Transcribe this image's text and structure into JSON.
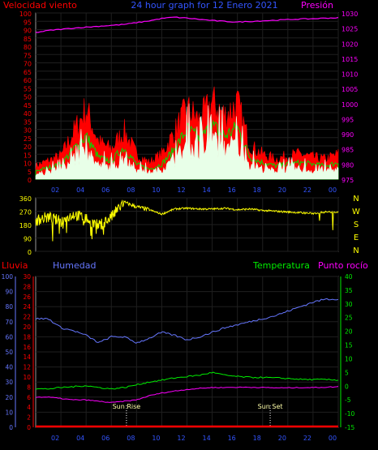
{
  "chart_data": [
    {
      "type": "area",
      "title": "24 hour graph for 12 Enero 2021",
      "left_axis_label": "Velocidad viento",
      "right_axis_label": "Presión",
      "x_tick_labels": [
        "02",
        "04",
        "06",
        "08",
        "10",
        "12",
        "14",
        "16",
        "18",
        "20",
        "22",
        "00"
      ],
      "left_ticks": [
        0,
        5,
        10,
        15,
        20,
        25,
        30,
        35,
        40,
        45,
        50,
        55,
        60,
        65,
        70,
        75,
        80,
        85,
        90,
        95,
        100
      ],
      "ylim_left": [
        0,
        100
      ],
      "right_ticks": [
        975,
        980,
        985,
        990,
        995,
        1000,
        1005,
        1010,
        1015,
        1020,
        1025,
        1030
      ],
      "ylim_right": [
        975,
        1030
      ],
      "colors": {
        "gust": "#ff0000",
        "wind": "#00dd00",
        "avg": "#e8ffe8",
        "pressure": "#ff00ff",
        "title": "#3355ff",
        "frame": "#999999"
      },
      "hours": [
        0,
        1,
        2,
        3,
        4,
        5,
        6,
        7,
        8,
        9,
        10,
        11,
        12,
        13,
        14,
        15,
        16,
        17,
        18,
        19,
        20,
        21,
        22,
        23,
        24
      ],
      "series": [
        {
          "key": "gust",
          "values": [
            8,
            11,
            14,
            28,
            42,
            22,
            18,
            29,
            15,
            10,
            15,
            28,
            42,
            35,
            46,
            38,
            45,
            20,
            15,
            12,
            14,
            15,
            13,
            12,
            15
          ]
        },
        {
          "key": "wind",
          "values": [
            5,
            7,
            9,
            18,
            26,
            13,
            11,
            19,
            9,
            6,
            9,
            18,
            30,
            24,
            32,
            26,
            31,
            13,
            10,
            8,
            9,
            10,
            9,
            8,
            10
          ]
        },
        {
          "key": "avg",
          "values": [
            3,
            4,
            6,
            11,
            16,
            8,
            7,
            12,
            5,
            4,
            6,
            11,
            20,
            16,
            22,
            18,
            21,
            8,
            6,
            5,
            6,
            6,
            5,
            5,
            6
          ]
        },
        {
          "key": "pressure",
          "values": [
            1023.5,
            1024.2,
            1024.6,
            1025.0,
            1025.3,
            1025.6,
            1025.9,
            1026.2,
            1026.8,
            1027.4,
            1028.2,
            1028.6,
            1028.3,
            1027.9,
            1027.5,
            1027.2,
            1027.0,
            1027.2,
            1027.4,
            1027.6,
            1027.8,
            1028.0,
            1028.1,
            1028.3,
            1028.4
          ]
        }
      ]
    },
    {
      "type": "line",
      "y_ticks": [
        0,
        90,
        180,
        270,
        360
      ],
      "ylim": [
        0,
        360
      ],
      "compass_labels": [
        "N",
        "W",
        "S",
        "E",
        "N"
      ],
      "x_tick_labels": [
        "02",
        "04",
        "06",
        "08",
        "10",
        "12",
        "14",
        "16",
        "18",
        "20",
        "22",
        "00"
      ],
      "hours": [
        0,
        1,
        2,
        3,
        4,
        5,
        6,
        7,
        8,
        9,
        10,
        11,
        12,
        13,
        14,
        15,
        16,
        17,
        18,
        19,
        20,
        21,
        22,
        23,
        24
      ],
      "series": [
        {
          "key": "direction",
          "color": "#ffff00",
          "values": [
            210,
            230,
            200,
            250,
            220,
            170,
            230,
            330,
            300,
            280,
            250,
            285,
            290,
            285,
            285,
            290,
            280,
            285,
            275,
            270,
            265,
            260,
            255,
            265,
            265
          ]
        }
      ]
    },
    {
      "type": "line",
      "left_outer_label": "Lluvia",
      "left_inner_label": "Humedad",
      "right_labels": [
        "Temperatura",
        "Punto rocío"
      ],
      "humidity_ticks": [
        0,
        10,
        20,
        30,
        40,
        50,
        60,
        70,
        80,
        90,
        100
      ],
      "ylim_humidity": [
        0,
        100
      ],
      "rain_ticks": [
        0,
        2,
        4,
        6,
        8,
        10,
        12,
        14,
        16,
        18,
        20,
        22,
        24,
        26,
        28,
        30
      ],
      "ylim_rain": [
        0,
        30
      ],
      "temp_ticks": [
        -15,
        -10,
        -5,
        0,
        5,
        10,
        15,
        20,
        25,
        30,
        35,
        40
      ],
      "ylim_temp": [
        -15,
        40
      ],
      "x_tick_labels": [
        "02",
        "04",
        "06",
        "08",
        "10",
        "12",
        "14",
        "16",
        "18",
        "20",
        "22",
        "00"
      ],
      "annotations": [
        {
          "text": "Sun Rise",
          "hour": 7.2
        },
        {
          "text": "Sun Set",
          "hour": 18.6
        }
      ],
      "colors": {
        "humidity": "#6677ff",
        "rain": "#ff0000",
        "temperature": "#00ee00",
        "dewpoint": "#ff00ff",
        "humidity_axis": "#6677ff",
        "rain_axis": "#ff0000",
        "temp_axis": "#00ee00"
      },
      "hours": [
        0,
        1,
        2,
        3,
        4,
        5,
        6,
        7,
        8,
        9,
        10,
        11,
        12,
        13,
        14,
        15,
        16,
        17,
        18,
        19,
        20,
        21,
        22,
        23,
        24
      ],
      "series": [
        {
          "key": "humidity",
          "values": [
            72,
            72,
            66,
            64,
            61,
            56,
            60,
            60,
            56,
            59,
            63,
            61,
            58,
            60,
            63,
            66,
            68,
            70,
            72,
            74,
            77,
            80,
            83,
            85,
            85
          ]
        },
        {
          "key": "temperature",
          "values": [
            -1,
            -1,
            -0.5,
            -0.2,
            0.2,
            -0.5,
            -1,
            -0.5,
            0.5,
            1.5,
            2.2,
            3,
            3.5,
            4,
            5,
            4,
            3.5,
            3.2,
            3.2,
            3,
            2.8,
            2.5,
            2.4,
            2.4,
            2.2
          ]
        },
        {
          "key": "dewpoint",
          "values": [
            -4,
            -4,
            -4.5,
            -5,
            -5,
            -5.5,
            -6,
            -5.5,
            -5,
            -3.5,
            -2.5,
            -1.8,
            -1.2,
            -0.8,
            -0.5,
            -0.5,
            -0.4,
            -0.4,
            -0.5,
            -0.6,
            -0.6,
            -0.5,
            -0.5,
            -0.4,
            -0.2
          ]
        },
        {
          "key": "rain",
          "values": [
            0,
            0,
            0,
            0,
            0,
            0,
            0,
            0,
            0,
            0,
            0,
            0,
            0,
            0,
            0,
            0,
            0,
            0,
            0,
            0,
            0,
            0,
            0,
            0,
            0
          ]
        }
      ]
    }
  ]
}
